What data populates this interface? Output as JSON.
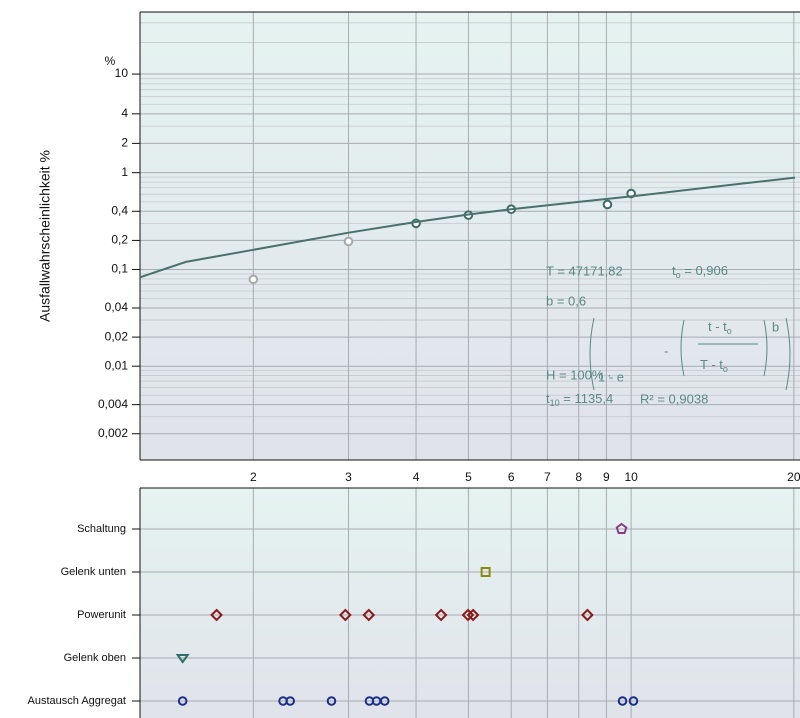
{
  "chart_data": [
    {
      "type": "weibull",
      "ylabel": "Ausfallwahrscheinlichkeit %",
      "yunit": "%",
      "yscale": "weibull",
      "xscale": "log",
      "xlim": [
        1.234,
        20.1
      ],
      "ylim": [
        0.00107,
        37
      ],
      "xticks": [
        2,
        3,
        4,
        5,
        6,
        7,
        8,
        9,
        10,
        20
      ],
      "yticks": [
        10,
        4,
        2,
        1,
        {
          "value": 0.4,
          "label": "0,4"
        },
        {
          "value": 0.2,
          "label": "0,2"
        },
        {
          "value": 0.1,
          "label": "0,1"
        },
        {
          "value": 0.04,
          "label": "0,04"
        },
        {
          "value": 0.02,
          "label": "0,02"
        },
        {
          "value": 0.01,
          "label": "0,01"
        },
        {
          "value": 0.004,
          "label": "0,004"
        },
        {
          "value": 0.002,
          "label": "0,002"
        }
      ],
      "yminorticks": [
        30,
        20,
        9,
        8,
        7,
        6,
        5,
        3,
        0.9,
        0.8,
        0.7,
        0.6,
        0.5,
        0.3,
        0.09,
        0.08,
        0.07,
        0.06,
        0.05,
        0.03,
        0.009,
        0.008,
        0.007,
        0.006,
        0.005,
        0.003
      ],
      "grid": true,
      "series": [
        {
          "style": "points",
          "color": "#a8a8a8",
          "x": [
            2,
            3
          ],
          "values": [
            0.079,
            0.195
          ]
        },
        {
          "style": "points",
          "color": "#3e6b66",
          "x": [
            4,
            5,
            6,
            9.04,
            10
          ],
          "values": [
            0.3,
            0.365,
            0.42,
            0.47,
            0.61
          ]
        },
        {
          "style": "line",
          "color": "#4a716d",
          "x": [
            1.234,
            1.5,
            2,
            3,
            4,
            5,
            6,
            8,
            10,
            15,
            20.1
          ],
          "values": [
            0.083,
            0.12,
            0.16,
            0.24,
            0.31,
            0.37,
            0.42,
            0.5,
            0.57,
            0.74,
            0.89
          ]
        }
      ],
      "annotations": {
        "T": "T = 47171,82",
        "t0": {
          "main": "t",
          "sub": "o",
          "tail": " = 0,906"
        },
        "b": "b = 0,6",
        "formula": {
          "lhs": "H  =  100% ·",
          "base": "1  -  e",
          "minus": "-",
          "num": {
            "main": "t - t",
            "sub": "o"
          },
          "den": {
            "main": "T - t",
            "sub": "o"
          },
          "exp": "b"
        },
        "t10": {
          "main": "t",
          "sub": "10",
          "tail": " = 1135,4"
        },
        "r2": "R² = 0,9038"
      }
    },
    {
      "type": "strip",
      "xscale": "log",
      "xlim": [
        1.234,
        20.1
      ],
      "grid": true,
      "series": [
        {
          "name": "Schaltung",
          "marker": "pentagon",
          "color": "#8a3a8a",
          "values": [
            9.6
          ]
        },
        {
          "name": "Gelenk unten",
          "marker": "square",
          "color": "#8a8a10",
          "values": [
            5.38
          ]
        },
        {
          "name": "Powerunit",
          "marker": "diamond",
          "color": "#8b1a1a",
          "values": [
            1.71,
            2.96,
            3.27,
            4.45,
            4.99,
            5.1,
            8.3
          ]
        },
        {
          "name": "Gelenk oben",
          "marker": "triangle-down",
          "color": "#2f6d6a",
          "values": [
            1.48
          ]
        },
        {
          "name": "Austausch Aggregat",
          "marker": "circle",
          "color": "#1a2f8a",
          "values": [
            1.48,
            2.27,
            2.34,
            2.79,
            3.28,
            3.38,
            3.5,
            9.64,
            10.1
          ]
        }
      ]
    }
  ]
}
